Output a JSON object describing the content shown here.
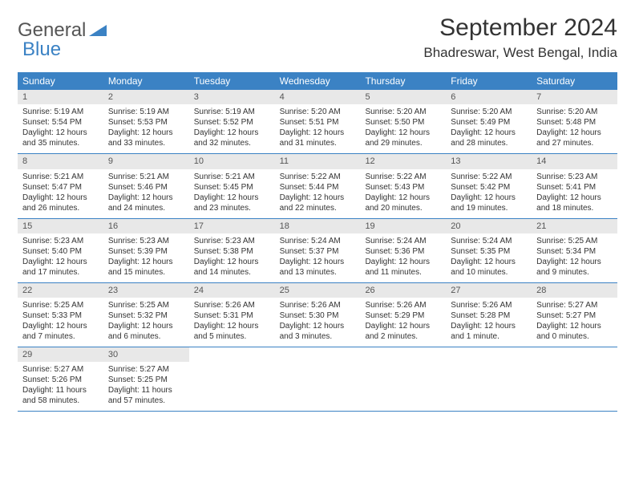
{
  "logo": {
    "word1": "General",
    "word2": "Blue"
  },
  "title": "September 2024",
  "location": "Bhadreswar, West Bengal, India",
  "colors": {
    "header_bg": "#3b82c4",
    "header_text": "#ffffff",
    "daynum_bg": "#e8e8e8",
    "border": "#3b82c4",
    "text": "#333333"
  },
  "day_names": [
    "Sunday",
    "Monday",
    "Tuesday",
    "Wednesday",
    "Thursday",
    "Friday",
    "Saturday"
  ],
  "weeks": [
    [
      {
        "n": "1",
        "sr": "Sunrise: 5:19 AM",
        "ss": "Sunset: 5:54 PM",
        "dl": "Daylight: 12 hours and 35 minutes."
      },
      {
        "n": "2",
        "sr": "Sunrise: 5:19 AM",
        "ss": "Sunset: 5:53 PM",
        "dl": "Daylight: 12 hours and 33 minutes."
      },
      {
        "n": "3",
        "sr": "Sunrise: 5:19 AM",
        "ss": "Sunset: 5:52 PM",
        "dl": "Daylight: 12 hours and 32 minutes."
      },
      {
        "n": "4",
        "sr": "Sunrise: 5:20 AM",
        "ss": "Sunset: 5:51 PM",
        "dl": "Daylight: 12 hours and 31 minutes."
      },
      {
        "n": "5",
        "sr": "Sunrise: 5:20 AM",
        "ss": "Sunset: 5:50 PM",
        "dl": "Daylight: 12 hours and 29 minutes."
      },
      {
        "n": "6",
        "sr": "Sunrise: 5:20 AM",
        "ss": "Sunset: 5:49 PM",
        "dl": "Daylight: 12 hours and 28 minutes."
      },
      {
        "n": "7",
        "sr": "Sunrise: 5:20 AM",
        "ss": "Sunset: 5:48 PM",
        "dl": "Daylight: 12 hours and 27 minutes."
      }
    ],
    [
      {
        "n": "8",
        "sr": "Sunrise: 5:21 AM",
        "ss": "Sunset: 5:47 PM",
        "dl": "Daylight: 12 hours and 26 minutes."
      },
      {
        "n": "9",
        "sr": "Sunrise: 5:21 AM",
        "ss": "Sunset: 5:46 PM",
        "dl": "Daylight: 12 hours and 24 minutes."
      },
      {
        "n": "10",
        "sr": "Sunrise: 5:21 AM",
        "ss": "Sunset: 5:45 PM",
        "dl": "Daylight: 12 hours and 23 minutes."
      },
      {
        "n": "11",
        "sr": "Sunrise: 5:22 AM",
        "ss": "Sunset: 5:44 PM",
        "dl": "Daylight: 12 hours and 22 minutes."
      },
      {
        "n": "12",
        "sr": "Sunrise: 5:22 AM",
        "ss": "Sunset: 5:43 PM",
        "dl": "Daylight: 12 hours and 20 minutes."
      },
      {
        "n": "13",
        "sr": "Sunrise: 5:22 AM",
        "ss": "Sunset: 5:42 PM",
        "dl": "Daylight: 12 hours and 19 minutes."
      },
      {
        "n": "14",
        "sr": "Sunrise: 5:23 AM",
        "ss": "Sunset: 5:41 PM",
        "dl": "Daylight: 12 hours and 18 minutes."
      }
    ],
    [
      {
        "n": "15",
        "sr": "Sunrise: 5:23 AM",
        "ss": "Sunset: 5:40 PM",
        "dl": "Daylight: 12 hours and 17 minutes."
      },
      {
        "n": "16",
        "sr": "Sunrise: 5:23 AM",
        "ss": "Sunset: 5:39 PM",
        "dl": "Daylight: 12 hours and 15 minutes."
      },
      {
        "n": "17",
        "sr": "Sunrise: 5:23 AM",
        "ss": "Sunset: 5:38 PM",
        "dl": "Daylight: 12 hours and 14 minutes."
      },
      {
        "n": "18",
        "sr": "Sunrise: 5:24 AM",
        "ss": "Sunset: 5:37 PM",
        "dl": "Daylight: 12 hours and 13 minutes."
      },
      {
        "n": "19",
        "sr": "Sunrise: 5:24 AM",
        "ss": "Sunset: 5:36 PM",
        "dl": "Daylight: 12 hours and 11 minutes."
      },
      {
        "n": "20",
        "sr": "Sunrise: 5:24 AM",
        "ss": "Sunset: 5:35 PM",
        "dl": "Daylight: 12 hours and 10 minutes."
      },
      {
        "n": "21",
        "sr": "Sunrise: 5:25 AM",
        "ss": "Sunset: 5:34 PM",
        "dl": "Daylight: 12 hours and 9 minutes."
      }
    ],
    [
      {
        "n": "22",
        "sr": "Sunrise: 5:25 AM",
        "ss": "Sunset: 5:33 PM",
        "dl": "Daylight: 12 hours and 7 minutes."
      },
      {
        "n": "23",
        "sr": "Sunrise: 5:25 AM",
        "ss": "Sunset: 5:32 PM",
        "dl": "Daylight: 12 hours and 6 minutes."
      },
      {
        "n": "24",
        "sr": "Sunrise: 5:26 AM",
        "ss": "Sunset: 5:31 PM",
        "dl": "Daylight: 12 hours and 5 minutes."
      },
      {
        "n": "25",
        "sr": "Sunrise: 5:26 AM",
        "ss": "Sunset: 5:30 PM",
        "dl": "Daylight: 12 hours and 3 minutes."
      },
      {
        "n": "26",
        "sr": "Sunrise: 5:26 AM",
        "ss": "Sunset: 5:29 PM",
        "dl": "Daylight: 12 hours and 2 minutes."
      },
      {
        "n": "27",
        "sr": "Sunrise: 5:26 AM",
        "ss": "Sunset: 5:28 PM",
        "dl": "Daylight: 12 hours and 1 minute."
      },
      {
        "n": "28",
        "sr": "Sunrise: 5:27 AM",
        "ss": "Sunset: 5:27 PM",
        "dl": "Daylight: 12 hours and 0 minutes."
      }
    ],
    [
      {
        "n": "29",
        "sr": "Sunrise: 5:27 AM",
        "ss": "Sunset: 5:26 PM",
        "dl": "Daylight: 11 hours and 58 minutes."
      },
      {
        "n": "30",
        "sr": "Sunrise: 5:27 AM",
        "ss": "Sunset: 5:25 PM",
        "dl": "Daylight: 11 hours and 57 minutes."
      },
      null,
      null,
      null,
      null,
      null
    ]
  ]
}
